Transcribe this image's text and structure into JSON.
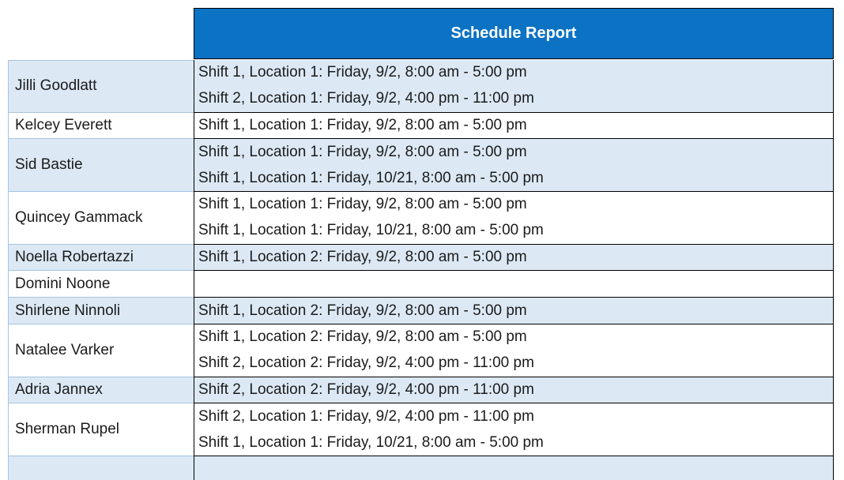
{
  "table": {
    "title": "Schedule Report"
  },
  "colors": {
    "header_bg": "#0B72C4",
    "header_text": "#FFFFFF",
    "banded_row_bg": "#DCE9F5",
    "row_bg": "#FFFFFF",
    "name_grid_border": "#A6C4E0",
    "schedule_grid_border": "#000000",
    "text": "#1B1B1B"
  },
  "rows": [
    {
      "name": "Jilli Goodlatt",
      "shifts": [
        "Shift 1, Location 1: Friday, 9/2, 8:00 am - 5:00 pm",
        "Shift 2, Location 1: Friday, 9/2, 4:00 pm - 11:00 pm"
      ]
    },
    {
      "name": "Kelcey Everett",
      "shifts": [
        "Shift 1, Location 1: Friday, 9/2, 8:00 am - 5:00 pm"
      ]
    },
    {
      "name": "Sid Bastie",
      "shifts": [
        "Shift 1, Location 1: Friday, 9/2, 8:00 am - 5:00 pm",
        "Shift 1, Location 1: Friday, 10/21, 8:00 am - 5:00 pm"
      ]
    },
    {
      "name": "Quincey Gammack",
      "shifts": [
        "Shift 1, Location 1: Friday, 9/2, 8:00 am - 5:00 pm",
        "Shift 1, Location 1: Friday, 10/21, 8:00 am - 5:00 pm"
      ]
    },
    {
      "name": "Noella Robertazzi",
      "shifts": [
        "Shift 1, Location 2: Friday, 9/2, 8:00 am - 5:00 pm"
      ]
    },
    {
      "name": "Domini Noone",
      "shifts": []
    },
    {
      "name": "Shirlene Ninnoli",
      "shifts": [
        "Shift 1, Location 2: Friday, 9/2, 8:00 am - 5:00 pm"
      ]
    },
    {
      "name": "Natalee Varker",
      "shifts": [
        "Shift 1, Location 2: Friday, 9/2, 8:00 am - 5:00 pm",
        "Shift 2, Location 2: Friday, 9/2, 4:00 pm - 11:00 pm"
      ]
    },
    {
      "name": "Adria Jannex",
      "shifts": [
        "Shift 2, Location 2: Friday, 9/2, 4:00 pm - 11:00 pm"
      ]
    },
    {
      "name": "Sherman Rupel",
      "shifts": [
        "Shift 2, Location 1: Friday, 9/2, 4:00 pm - 11:00 pm",
        "Shift 1, Location 1: Friday, 10/21, 8:00 am - 5:00 pm"
      ]
    }
  ]
}
